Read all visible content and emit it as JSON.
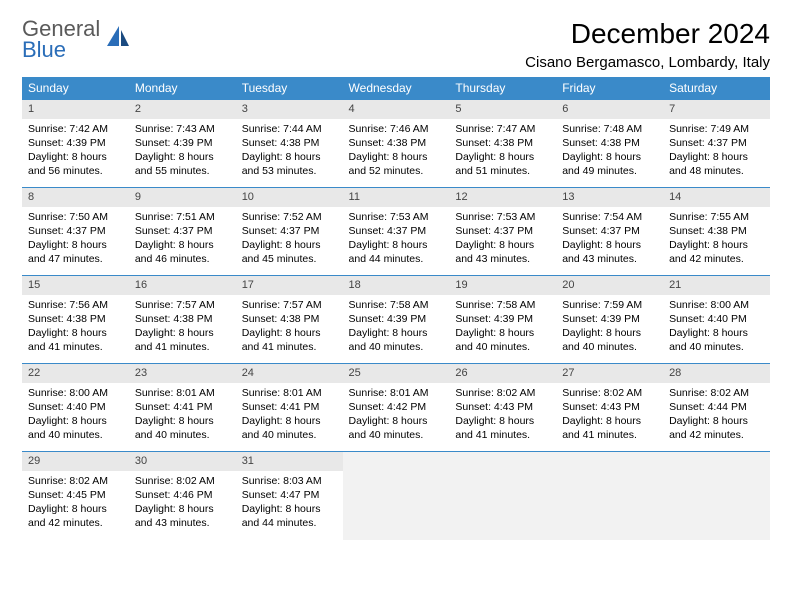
{
  "brand": {
    "line1": "General",
    "line2": "Blue"
  },
  "title": "December 2024",
  "location": "Cisano Bergamasco, Lombardy, Italy",
  "colors": {
    "header_bg": "#3a8ac9",
    "header_text": "#ffffff",
    "daynum_bg": "#e8e8e8",
    "border": "#3a8ac9",
    "logo_gray": "#5a5a5a",
    "logo_blue": "#2a6db8"
  },
  "weekdays": [
    "Sunday",
    "Monday",
    "Tuesday",
    "Wednesday",
    "Thursday",
    "Friday",
    "Saturday"
  ],
  "weeks": [
    [
      {
        "n": "1",
        "sr": "Sunrise: 7:42 AM",
        "ss": "Sunset: 4:39 PM",
        "d1": "Daylight: 8 hours",
        "d2": "and 56 minutes."
      },
      {
        "n": "2",
        "sr": "Sunrise: 7:43 AM",
        "ss": "Sunset: 4:39 PM",
        "d1": "Daylight: 8 hours",
        "d2": "and 55 minutes."
      },
      {
        "n": "3",
        "sr": "Sunrise: 7:44 AM",
        "ss": "Sunset: 4:38 PM",
        "d1": "Daylight: 8 hours",
        "d2": "and 53 minutes."
      },
      {
        "n": "4",
        "sr": "Sunrise: 7:46 AM",
        "ss": "Sunset: 4:38 PM",
        "d1": "Daylight: 8 hours",
        "d2": "and 52 minutes."
      },
      {
        "n": "5",
        "sr": "Sunrise: 7:47 AM",
        "ss": "Sunset: 4:38 PM",
        "d1": "Daylight: 8 hours",
        "d2": "and 51 minutes."
      },
      {
        "n": "6",
        "sr": "Sunrise: 7:48 AM",
        "ss": "Sunset: 4:38 PM",
        "d1": "Daylight: 8 hours",
        "d2": "and 49 minutes."
      },
      {
        "n": "7",
        "sr": "Sunrise: 7:49 AM",
        "ss": "Sunset: 4:37 PM",
        "d1": "Daylight: 8 hours",
        "d2": "and 48 minutes."
      }
    ],
    [
      {
        "n": "8",
        "sr": "Sunrise: 7:50 AM",
        "ss": "Sunset: 4:37 PM",
        "d1": "Daylight: 8 hours",
        "d2": "and 47 minutes."
      },
      {
        "n": "9",
        "sr": "Sunrise: 7:51 AM",
        "ss": "Sunset: 4:37 PM",
        "d1": "Daylight: 8 hours",
        "d2": "and 46 minutes."
      },
      {
        "n": "10",
        "sr": "Sunrise: 7:52 AM",
        "ss": "Sunset: 4:37 PM",
        "d1": "Daylight: 8 hours",
        "d2": "and 45 minutes."
      },
      {
        "n": "11",
        "sr": "Sunrise: 7:53 AM",
        "ss": "Sunset: 4:37 PM",
        "d1": "Daylight: 8 hours",
        "d2": "and 44 minutes."
      },
      {
        "n": "12",
        "sr": "Sunrise: 7:53 AM",
        "ss": "Sunset: 4:37 PM",
        "d1": "Daylight: 8 hours",
        "d2": "and 43 minutes."
      },
      {
        "n": "13",
        "sr": "Sunrise: 7:54 AM",
        "ss": "Sunset: 4:37 PM",
        "d1": "Daylight: 8 hours",
        "d2": "and 43 minutes."
      },
      {
        "n": "14",
        "sr": "Sunrise: 7:55 AM",
        "ss": "Sunset: 4:38 PM",
        "d1": "Daylight: 8 hours",
        "d2": "and 42 minutes."
      }
    ],
    [
      {
        "n": "15",
        "sr": "Sunrise: 7:56 AM",
        "ss": "Sunset: 4:38 PM",
        "d1": "Daylight: 8 hours",
        "d2": "and 41 minutes."
      },
      {
        "n": "16",
        "sr": "Sunrise: 7:57 AM",
        "ss": "Sunset: 4:38 PM",
        "d1": "Daylight: 8 hours",
        "d2": "and 41 minutes."
      },
      {
        "n": "17",
        "sr": "Sunrise: 7:57 AM",
        "ss": "Sunset: 4:38 PM",
        "d1": "Daylight: 8 hours",
        "d2": "and 41 minutes."
      },
      {
        "n": "18",
        "sr": "Sunrise: 7:58 AM",
        "ss": "Sunset: 4:39 PM",
        "d1": "Daylight: 8 hours",
        "d2": "and 40 minutes."
      },
      {
        "n": "19",
        "sr": "Sunrise: 7:58 AM",
        "ss": "Sunset: 4:39 PM",
        "d1": "Daylight: 8 hours",
        "d2": "and 40 minutes."
      },
      {
        "n": "20",
        "sr": "Sunrise: 7:59 AM",
        "ss": "Sunset: 4:39 PM",
        "d1": "Daylight: 8 hours",
        "d2": "and 40 minutes."
      },
      {
        "n": "21",
        "sr": "Sunrise: 8:00 AM",
        "ss": "Sunset: 4:40 PM",
        "d1": "Daylight: 8 hours",
        "d2": "and 40 minutes."
      }
    ],
    [
      {
        "n": "22",
        "sr": "Sunrise: 8:00 AM",
        "ss": "Sunset: 4:40 PM",
        "d1": "Daylight: 8 hours",
        "d2": "and 40 minutes."
      },
      {
        "n": "23",
        "sr": "Sunrise: 8:01 AM",
        "ss": "Sunset: 4:41 PM",
        "d1": "Daylight: 8 hours",
        "d2": "and 40 minutes."
      },
      {
        "n": "24",
        "sr": "Sunrise: 8:01 AM",
        "ss": "Sunset: 4:41 PM",
        "d1": "Daylight: 8 hours",
        "d2": "and 40 minutes."
      },
      {
        "n": "25",
        "sr": "Sunrise: 8:01 AM",
        "ss": "Sunset: 4:42 PM",
        "d1": "Daylight: 8 hours",
        "d2": "and 40 minutes."
      },
      {
        "n": "26",
        "sr": "Sunrise: 8:02 AM",
        "ss": "Sunset: 4:43 PM",
        "d1": "Daylight: 8 hours",
        "d2": "and 41 minutes."
      },
      {
        "n": "27",
        "sr": "Sunrise: 8:02 AM",
        "ss": "Sunset: 4:43 PM",
        "d1": "Daylight: 8 hours",
        "d2": "and 41 minutes."
      },
      {
        "n": "28",
        "sr": "Sunrise: 8:02 AM",
        "ss": "Sunset: 4:44 PM",
        "d1": "Daylight: 8 hours",
        "d2": "and 42 minutes."
      }
    ],
    [
      {
        "n": "29",
        "sr": "Sunrise: 8:02 AM",
        "ss": "Sunset: 4:45 PM",
        "d1": "Daylight: 8 hours",
        "d2": "and 42 minutes."
      },
      {
        "n": "30",
        "sr": "Sunrise: 8:02 AM",
        "ss": "Sunset: 4:46 PM",
        "d1": "Daylight: 8 hours",
        "d2": "and 43 minutes."
      },
      {
        "n": "31",
        "sr": "Sunrise: 8:03 AM",
        "ss": "Sunset: 4:47 PM",
        "d1": "Daylight: 8 hours",
        "d2": "and 44 minutes."
      },
      null,
      null,
      null,
      null
    ]
  ]
}
